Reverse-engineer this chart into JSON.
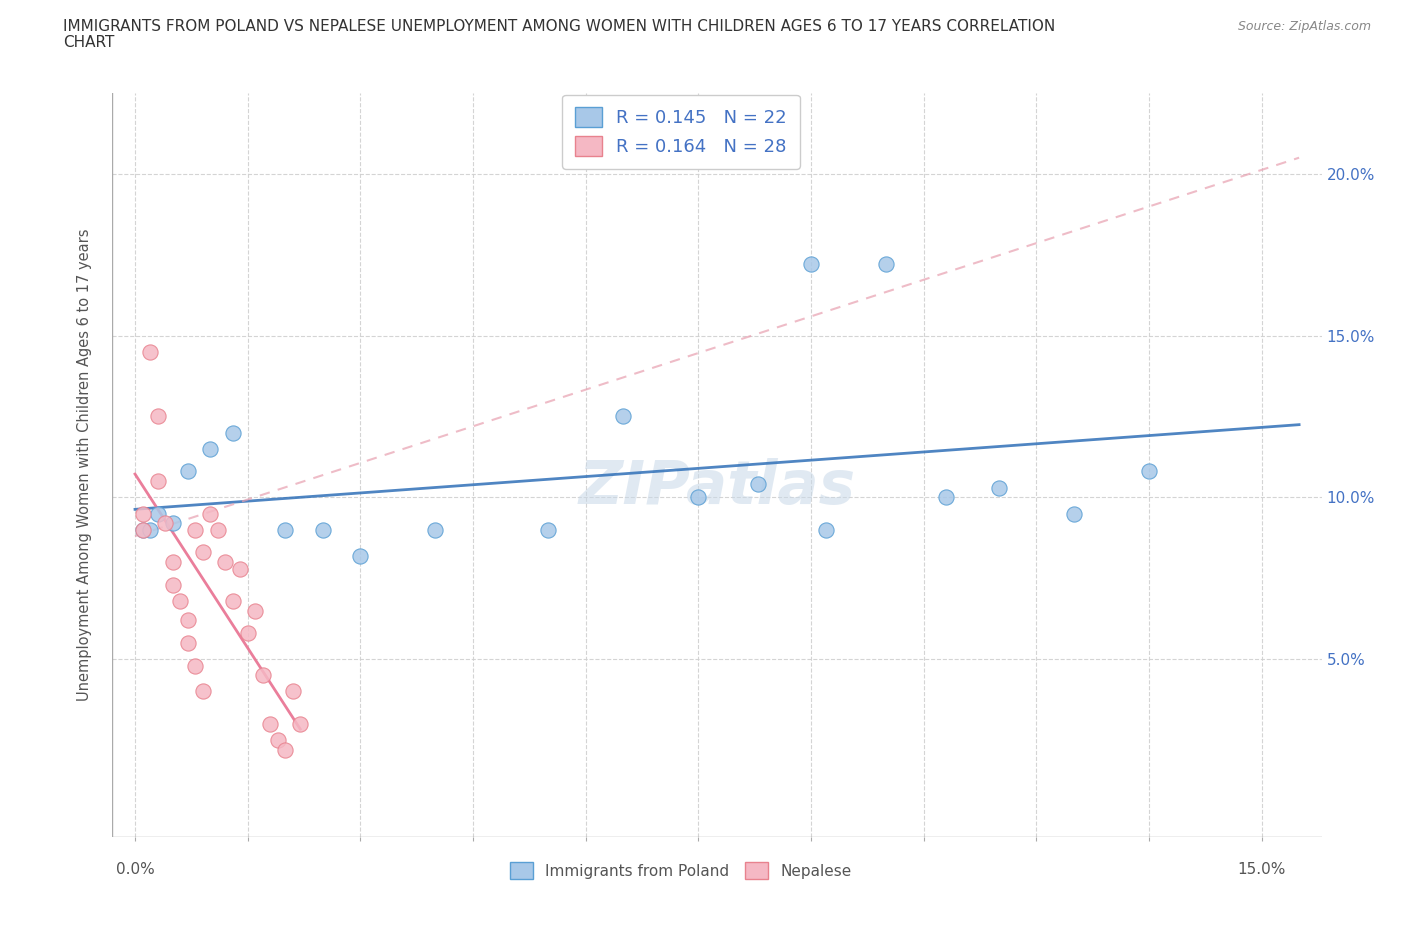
{
  "title_line1": "IMMIGRANTS FROM POLAND VS NEPALESE UNEMPLOYMENT AMONG WOMEN WITH CHILDREN AGES 6 TO 17 YEARS CORRELATION",
  "title_line2": "CHART",
  "source": "Source: ZipAtlas.com",
  "ylabel": "Unemployment Among Women with Children Ages 6 to 17 years",
  "xlim": [
    -0.003,
    0.158
  ],
  "ylim": [
    -0.005,
    0.225
  ],
  "xticks_minor": [
    0.0,
    0.015,
    0.03,
    0.045,
    0.06,
    0.075,
    0.09,
    0.105,
    0.12,
    0.135,
    0.15
  ],
  "xticks_labeled": [
    0.0,
    0.15
  ],
  "xtick_labels_bottom": [
    "0.0%",
    "15.0%"
  ],
  "yticks": [
    0.05,
    0.1,
    0.15,
    0.2
  ],
  "ytick_labels": [
    "5.0%",
    "10.0%",
    "15.0%",
    "20.0%"
  ],
  "poland_color": "#a8c8e8",
  "poland_edge": "#5a9fd4",
  "nepalese_color": "#f5b8c4",
  "nepalese_edge": "#e8828e",
  "trend_poland_color": "#3070b8",
  "trend_nepalese_color": "#e87090",
  "trend_nepalese_dashed_color": "#e8a0b0",
  "watermark": "ZIPatlas",
  "legend_r1": "R = 0.145   N = 22",
  "legend_r2": "R = 0.164   N = 28",
  "legend_label1": "Immigrants from Poland",
  "legend_label2": "Nepalese",
  "poland_x": [
    0.001,
    0.002,
    0.003,
    0.005,
    0.007,
    0.01,
    0.013,
    0.02,
    0.025,
    0.03,
    0.04,
    0.055,
    0.065,
    0.075,
    0.083,
    0.09,
    0.092,
    0.1,
    0.108,
    0.115,
    0.125,
    0.135
  ],
  "poland_y": [
    0.09,
    0.09,
    0.095,
    0.092,
    0.108,
    0.115,
    0.12,
    0.09,
    0.09,
    0.082,
    0.09,
    0.09,
    0.125,
    0.1,
    0.104,
    0.172,
    0.09,
    0.172,
    0.1,
    0.103,
    0.095,
    0.108
  ],
  "nepalese_x": [
    0.001,
    0.001,
    0.002,
    0.003,
    0.003,
    0.004,
    0.005,
    0.005,
    0.006,
    0.007,
    0.007,
    0.008,
    0.008,
    0.009,
    0.009,
    0.01,
    0.011,
    0.012,
    0.013,
    0.014,
    0.015,
    0.016,
    0.017,
    0.018,
    0.019,
    0.02,
    0.021,
    0.022
  ],
  "nepalese_y": [
    0.09,
    0.095,
    0.145,
    0.105,
    0.125,
    0.092,
    0.08,
    0.073,
    0.068,
    0.055,
    0.062,
    0.048,
    0.09,
    0.04,
    0.083,
    0.095,
    0.09,
    0.08,
    0.068,
    0.078,
    0.058,
    0.065,
    0.045,
    0.03,
    0.025,
    0.022,
    0.04,
    0.03
  ]
}
